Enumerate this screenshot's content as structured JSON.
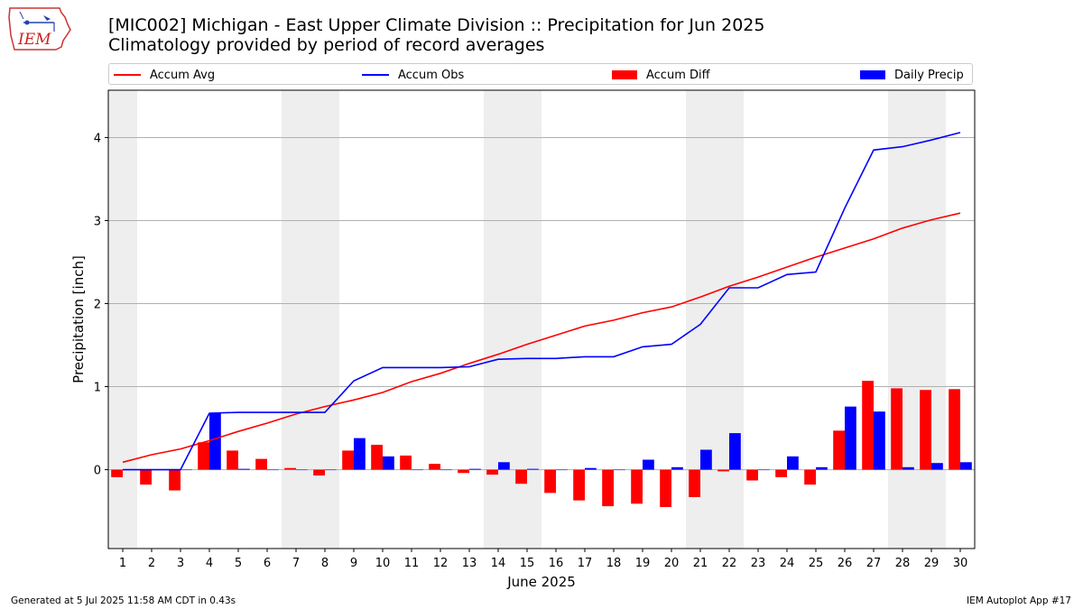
{
  "header": {
    "title": "[MIC002] Michigan - East Upper Climate Division :: Precipitation for Jun 2025",
    "subtitle": "Climatology provided by period of record averages"
  },
  "logo": {
    "text": "IEM",
    "icon": "iowa-state-outline-logo"
  },
  "footer": {
    "generated": "Generated at 5 Jul 2025 11:58 AM CDT in 0.43s",
    "app": "IEM Autoplot App #17"
  },
  "colors": {
    "avg": "#ff0000",
    "obs": "#0000ff",
    "diff": "#ff0000",
    "daily": "#0000ff",
    "weekend": "#eeeeee",
    "grid": "#b0b0b0"
  },
  "chart_data": {
    "type": "bar",
    "xlabel": "June 2025",
    "ylabel": "Precipitation [inch]",
    "legend_position": "top",
    "grid": true,
    "xlim": [
      0.5,
      30.5
    ],
    "ylim": [
      -0.95,
      4.57
    ],
    "yticks": [
      0,
      1,
      2,
      3,
      4
    ],
    "yticklabels": [
      "0",
      "1",
      "2",
      "3",
      "4"
    ],
    "x": [
      1,
      2,
      3,
      4,
      5,
      6,
      7,
      8,
      9,
      10,
      11,
      12,
      13,
      14,
      15,
      16,
      17,
      18,
      19,
      20,
      21,
      22,
      23,
      24,
      25,
      26,
      27,
      28,
      29,
      30
    ],
    "xticklabels": [
      "1",
      "2",
      "3",
      "4",
      "5",
      "6",
      "7",
      "8",
      "9",
      "10",
      "11",
      "12",
      "13",
      "14",
      "15",
      "16",
      "17",
      "18",
      "19",
      "20",
      "21",
      "22",
      "23",
      "24",
      "25",
      "26",
      "27",
      "28",
      "29",
      "30"
    ],
    "weekend_days": [
      1,
      7,
      8,
      14,
      15,
      21,
      22,
      28,
      29
    ],
    "series": [
      {
        "name": "Accum Avg",
        "kind": "line",
        "values": [
          0.09,
          0.18,
          0.25,
          0.35,
          0.46,
          0.56,
          0.67,
          0.76,
          0.84,
          0.93,
          1.06,
          1.16,
          1.28,
          1.39,
          1.51,
          1.62,
          1.73,
          1.8,
          1.89,
          1.96,
          2.08,
          2.21,
          2.32,
          2.44,
          2.56,
          2.67,
          2.78,
          2.91,
          3.01,
          3.09
        ]
      },
      {
        "name": "Accum Obs",
        "kind": "line",
        "values": [
          0.0,
          0.0,
          0.0,
          0.68,
          0.69,
          0.69,
          0.69,
          0.69,
          1.07,
          1.23,
          1.23,
          1.23,
          1.24,
          1.33,
          1.34,
          1.34,
          1.36,
          1.36,
          1.48,
          1.51,
          1.75,
          2.19,
          2.19,
          2.35,
          2.38,
          3.15,
          3.85,
          3.89,
          3.97,
          4.06
        ]
      },
      {
        "name": "Accum Diff",
        "kind": "bar",
        "values": [
          -0.09,
          -0.18,
          -0.25,
          0.33,
          0.23,
          0.13,
          0.02,
          -0.07,
          0.23,
          0.3,
          0.17,
          0.07,
          -0.04,
          -0.06,
          -0.17,
          -0.28,
          -0.37,
          -0.44,
          -0.41,
          -0.45,
          -0.33,
          -0.02,
          -0.13,
          -0.09,
          -0.18,
          0.47,
          1.07,
          0.98,
          0.96,
          0.97
        ]
      },
      {
        "name": "Daily Precip",
        "kind": "bar",
        "values": [
          0.0,
          0.0,
          0.0,
          0.68,
          0.01,
          0.0,
          0.0,
          0.0,
          0.38,
          0.16,
          0.0,
          0.0,
          0.01,
          0.09,
          0.01,
          0.0,
          0.02,
          0.0,
          0.12,
          0.03,
          0.24,
          0.44,
          0.0,
          0.16,
          0.03,
          0.76,
          0.7,
          0.03,
          0.08,
          0.09
        ]
      }
    ]
  }
}
